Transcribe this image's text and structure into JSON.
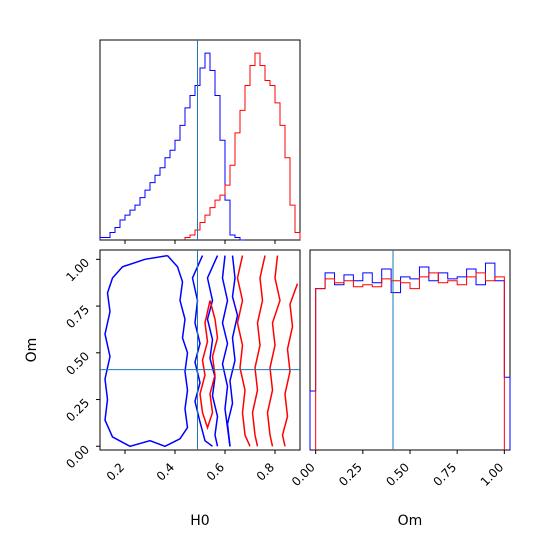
{
  "chart_data": [
    {
      "type": "histogram",
      "panel": "H0 marginal",
      "xlim": [
        0.1,
        0.9
      ],
      "truth_x": 0.49,
      "tick_labels_shown": false,
      "series": [
        {
          "color": "#0000ff",
          "style": "step",
          "bin_edges": [
            0.1,
            0.12,
            0.14,
            0.16,
            0.18,
            0.2,
            0.22,
            0.24,
            0.26,
            0.28,
            0.3,
            0.32,
            0.34,
            0.36,
            0.38,
            0.4,
            0.42,
            0.44,
            0.46,
            0.48,
            0.5,
            0.52,
            0.54,
            0.56,
            0.58,
            0.6,
            0.62,
            0.64,
            0.66,
            0.68
          ],
          "counts": [
            1,
            1,
            3,
            5,
            8,
            10,
            12,
            14,
            17,
            20,
            23,
            26,
            29,
            33,
            36,
            40,
            46,
            53,
            58,
            62,
            69,
            75,
            68,
            58,
            40,
            16,
            2,
            1,
            0
          ]
        },
        {
          "color": "#ff0000",
          "style": "step",
          "bin_edges": [
            0.44,
            0.46,
            0.48,
            0.5,
            0.52,
            0.54,
            0.56,
            0.58,
            0.6,
            0.62,
            0.64,
            0.66,
            0.68,
            0.7,
            0.72,
            0.74,
            0.76,
            0.78,
            0.8,
            0.82,
            0.84,
            0.86,
            0.88,
            0.9
          ],
          "counts": [
            1,
            2,
            4,
            7,
            10,
            13,
            16,
            18,
            22,
            30,
            43,
            52,
            62,
            70,
            75,
            70,
            64,
            62,
            55,
            46,
            33,
            14,
            3
          ]
        }
      ]
    },
    {
      "type": "contour",
      "panel": "H0 vs Om",
      "xlabel": "H0",
      "ylabel": "Om",
      "xlim": [
        0.1,
        0.9
      ],
      "ylim": [
        -0.02,
        1.05
      ],
      "x_ticks": [
        0.2,
        0.4,
        0.6,
        0.8
      ],
      "x_tick_labels": [
        "0.2",
        "0.4",
        "0.6",
        "0.8"
      ],
      "y_ticks": [
        0.0,
        0.25,
        0.5,
        0.75,
        1.0
      ],
      "y_tick_labels": [
        "0.00",
        "0.25",
        "0.50",
        "0.75",
        "1.00"
      ],
      "truth": {
        "x": 0.49,
        "y": 0.41
      },
      "series": [
        {
          "color": "#0000ff",
          "contours": [
            [
              [
                0.37,
                1.02
              ],
              [
                0.28,
                1.0
              ],
              [
                0.19,
                0.96
              ],
              [
                0.15,
                0.9
              ],
              [
                0.13,
                0.82
              ],
              [
                0.14,
                0.72
              ],
              [
                0.12,
                0.6
              ],
              [
                0.14,
                0.48
              ],
              [
                0.12,
                0.36
              ],
              [
                0.13,
                0.25
              ],
              [
                0.12,
                0.14
              ],
              [
                0.15,
                0.05
              ],
              [
                0.22,
                0.0
              ],
              [
                0.3,
                0.03
              ],
              [
                0.36,
                0.0
              ],
              [
                0.42,
                0.04
              ],
              [
                0.45,
                0.1
              ],
              [
                0.44,
                0.2
              ],
              [
                0.45,
                0.3
              ],
              [
                0.44,
                0.4
              ],
              [
                0.45,
                0.5
              ],
              [
                0.43,
                0.58
              ],
              [
                0.44,
                0.68
              ],
              [
                0.42,
                0.78
              ],
              [
                0.43,
                0.88
              ],
              [
                0.41,
                0.96
              ],
              [
                0.37,
                1.02
              ]
            ],
            [
              [
                0.51,
                1.02
              ],
              [
                0.47,
                0.9
              ],
              [
                0.49,
                0.78
              ],
              [
                0.48,
                0.66
              ],
              [
                0.5,
                0.55
              ],
              [
                0.48,
                0.45
              ],
              [
                0.5,
                0.34
              ],
              [
                0.48,
                0.24
              ],
              [
                0.5,
                0.13
              ],
              [
                0.52,
                0.03
              ],
              [
                0.55,
                0.0
              ]
            ],
            [
              [
                0.57,
                1.02
              ],
              [
                0.53,
                0.9
              ],
              [
                0.55,
                0.78
              ],
              [
                0.53,
                0.68
              ],
              [
                0.55,
                0.57
              ],
              [
                0.54,
                0.47
              ],
              [
                0.56,
                0.37
              ],
              [
                0.55,
                0.27
              ],
              [
                0.57,
                0.16
              ],
              [
                0.56,
                0.06
              ],
              [
                0.57,
                0.0
              ]
            ],
            [
              [
                0.6,
                1.02
              ],
              [
                0.59,
                0.9
              ],
              [
                0.61,
                0.78
              ],
              [
                0.59,
                0.66
              ],
              [
                0.61,
                0.55
              ],
              [
                0.59,
                0.44
              ],
              [
                0.61,
                0.32
              ],
              [
                0.6,
                0.2
              ],
              [
                0.61,
                0.1
              ],
              [
                0.62,
                0.0
              ]
            ],
            [
              [
                0.63,
                1.02
              ],
              [
                0.64,
                0.9
              ],
              [
                0.63,
                0.8
              ],
              [
                0.65,
                0.7
              ],
              [
                0.63,
                0.58
              ],
              [
                0.64,
                0.46
              ],
              [
                0.62,
                0.35
              ],
              [
                0.63,
                0.23
              ],
              [
                0.61,
                0.12
              ],
              [
                0.62,
                0.0
              ]
            ]
          ]
        },
        {
          "color": "#ff0000",
          "contours": [
            [
              [
                0.54,
                0.78
              ],
              [
                0.52,
                0.66
              ],
              [
                0.53,
                0.56
              ],
              [
                0.51,
                0.46
              ],
              [
                0.52,
                0.38
              ],
              [
                0.5,
                0.28
              ],
              [
                0.51,
                0.18
              ],
              [
                0.53,
                0.1
              ],
              [
                0.55,
                0.18
              ],
              [
                0.54,
                0.28
              ],
              [
                0.56,
                0.38
              ],
              [
                0.55,
                0.48
              ],
              [
                0.57,
                0.58
              ],
              [
                0.56,
                0.68
              ],
              [
                0.54,
                0.78
              ]
            ],
            [
              [
                0.67,
                1.02
              ],
              [
                0.65,
                0.9
              ],
              [
                0.67,
                0.78
              ],
              [
                0.65,
                0.66
              ],
              [
                0.67,
                0.54
              ],
              [
                0.66,
                0.42
              ],
              [
                0.68,
                0.3
              ],
              [
                0.67,
                0.18
              ],
              [
                0.68,
                0.06
              ],
              [
                0.7,
                0.0
              ]
            ],
            [
              [
                0.76,
                1.02
              ],
              [
                0.74,
                0.9
              ],
              [
                0.75,
                0.78
              ],
              [
                0.73,
                0.66
              ],
              [
                0.74,
                0.54
              ],
              [
                0.72,
                0.42
              ],
              [
                0.73,
                0.3
              ],
              [
                0.71,
                0.18
              ],
              [
                0.72,
                0.06
              ],
              [
                0.73,
                0.0
              ]
            ],
            [
              [
                0.81,
                1.02
              ],
              [
                0.8,
                0.9
              ],
              [
                0.82,
                0.78
              ],
              [
                0.79,
                0.66
              ],
              [
                0.8,
                0.54
              ],
              [
                0.78,
                0.42
              ],
              [
                0.79,
                0.3
              ],
              [
                0.77,
                0.18
              ],
              [
                0.78,
                0.06
              ],
              [
                0.79,
                0.0
              ]
            ],
            [
              [
                0.89,
                0.87
              ],
              [
                0.86,
                0.76
              ],
              [
                0.87,
                0.64
              ],
              [
                0.85,
                0.52
              ],
              [
                0.86,
                0.4
              ],
              [
                0.84,
                0.28
              ],
              [
                0.85,
                0.16
              ],
              [
                0.83,
                0.06
              ],
              [
                0.84,
                0.0
              ]
            ]
          ]
        }
      ]
    },
    {
      "type": "histogram",
      "panel": "Om marginal",
      "xlabel": "Om",
      "xlim": [
        -0.03,
        1.03
      ],
      "x_ticks": [
        0.0,
        0.25,
        0.5,
        0.75,
        1.0
      ],
      "x_tick_labels": [
        "0.00",
        "0.25",
        "0.50",
        "0.75",
        "1.00"
      ],
      "truth_x": 0.41,
      "series": [
        {
          "color": "#0000ff",
          "style": "step",
          "bin_edges": [
            -0.03,
            0.0,
            0.05,
            0.1,
            0.15,
            0.2,
            0.25,
            0.3,
            0.35,
            0.4,
            0.45,
            0.5,
            0.55,
            0.6,
            0.65,
            0.7,
            0.75,
            0.8,
            0.85,
            0.9,
            0.95,
            1.0,
            1.03
          ],
          "counts": [
            30,
            82,
            90,
            84,
            89,
            86,
            90,
            85,
            92,
            80,
            88,
            87,
            93,
            86,
            90,
            87,
            88,
            92,
            84,
            95,
            86,
            37
          ]
        },
        {
          "color": "#ff0000",
          "style": "step",
          "bin_edges": [
            0.0,
            0.05,
            0.1,
            0.15,
            0.2,
            0.25,
            0.3,
            0.35,
            0.4,
            0.45,
            0.5,
            0.55,
            0.6,
            0.65,
            0.7,
            0.75,
            0.8,
            0.85,
            0.9,
            0.95,
            1.0
          ],
          "counts": [
            82,
            87,
            85,
            86,
            83,
            84,
            83,
            87,
            86,
            85,
            82,
            88,
            90,
            85,
            86,
            84,
            88,
            90,
            86,
            88
          ]
        }
      ]
    }
  ]
}
